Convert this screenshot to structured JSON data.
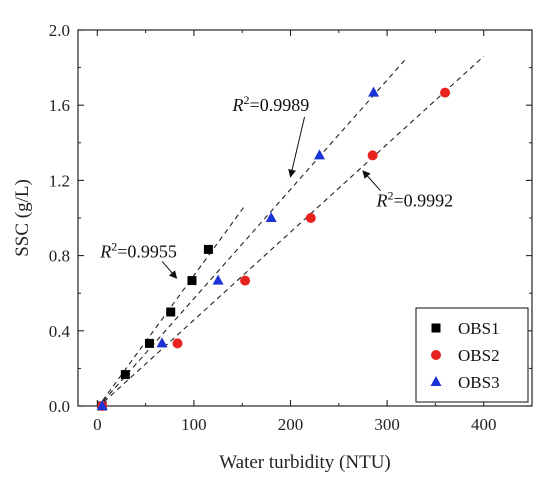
{
  "chart_data": {
    "type": "scatter",
    "xlabel": "Water turbidity (NTU)",
    "ylabel": "SSC (g/L)",
    "xlim": [
      -20,
      450
    ],
    "ylim": [
      0,
      2.0
    ],
    "xticks": [
      0,
      100,
      200,
      300,
      400
    ],
    "yticks": [
      0.0,
      0.4,
      0.8,
      1.2,
      1.6,
      2.0
    ],
    "tick_labels_x": [
      "0",
      "100",
      "200",
      "300",
      "400"
    ],
    "tick_labels_y": [
      "0.0",
      "0.4",
      "0.8",
      "1.2",
      "1.6",
      "2.0"
    ],
    "grid": false,
    "legend_position": "bottom-right",
    "series": [
      {
        "name": "OBS1",
        "marker": "square",
        "color": "#000000",
        "points": [
          [
            5,
            0.0
          ],
          [
            29,
            0.167
          ],
          [
            54,
            0.333
          ],
          [
            76,
            0.5
          ],
          [
            98,
            0.667
          ],
          [
            115,
            0.833
          ]
        ],
        "fit_line": [
          [
            0,
            -0.01
          ],
          [
            152,
            1.06
          ]
        ],
        "r2_label": "R²=0.9955"
      },
      {
        "name": "OBS2",
        "marker": "circle",
        "color": "#e8231f",
        "points": [
          [
            5,
            0.0
          ],
          [
            83,
            0.333
          ],
          [
            153,
            0.667
          ],
          [
            221,
            1.0
          ],
          [
            285,
            1.333
          ],
          [
            360,
            1.667
          ]
        ],
        "fit_line": [
          [
            0,
            -0.01
          ],
          [
            400,
            1.86
          ]
        ],
        "r2_label": "R²=0.9992"
      },
      {
        "name": "OBS3",
        "marker": "triangle",
        "color": "#1a33d6",
        "points": [
          [
            5,
            0.0
          ],
          [
            67,
            0.333
          ],
          [
            125,
            0.667
          ],
          [
            180,
            1.0
          ],
          [
            230,
            1.333
          ],
          [
            286,
            1.667
          ]
        ],
        "fit_line": [
          [
            0,
            -0.01
          ],
          [
            320,
            1.85
          ]
        ],
        "r2_label": "R²=0.9989"
      }
    ],
    "annotations": [
      {
        "series": "OBS1",
        "text": "R²=0.9955",
        "r2_base": "R",
        "r2_sup": "2",
        "r2_value": "=0.9955",
        "anchor": [
          82,
          0.68
        ],
        "label_at": [
          3,
          0.79
        ]
      },
      {
        "series": "OBS3",
        "text": "R²=0.9989",
        "r2_base": "R",
        "r2_sup": "2",
        "r2_value": "=0.9989",
        "anchor": [
          200,
          1.22
        ],
        "label_at": [
          140,
          1.57
        ]
      },
      {
        "series": "OBS2",
        "text": "R²=0.9992",
        "r2_base": "R",
        "r2_sup": "2",
        "r2_value": "=0.9992",
        "anchor": [
          275,
          1.25
        ],
        "label_at": [
          289,
          1.06
        ]
      }
    ]
  }
}
